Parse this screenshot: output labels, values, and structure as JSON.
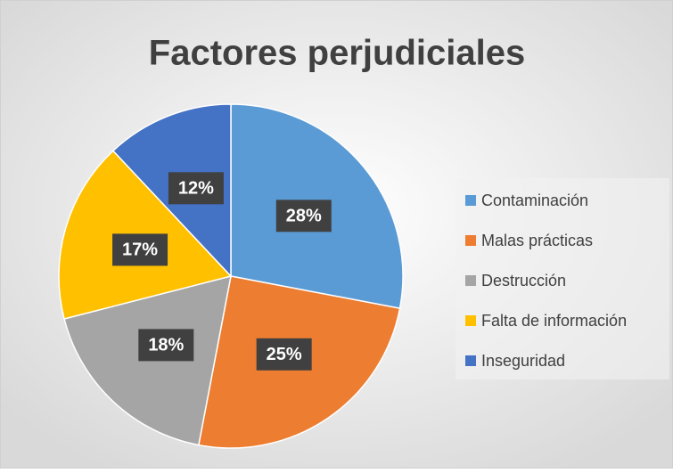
{
  "chart_data": {
    "type": "pie",
    "title": "Factores perjudiciales",
    "categories": [
      "Contaminación",
      "Malas prácticas",
      "Destrucción",
      "Falta de información",
      "Inseguridad"
    ],
    "values": [
      28,
      25,
      18,
      17,
      12
    ],
    "value_labels": [
      "28%",
      "25%",
      "18%",
      "17%",
      "12%"
    ],
    "colors": [
      "#5b9bd5",
      "#ed7d31",
      "#a5a5a5",
      "#ffc000",
      "#4472c4"
    ],
    "legend": "right"
  }
}
